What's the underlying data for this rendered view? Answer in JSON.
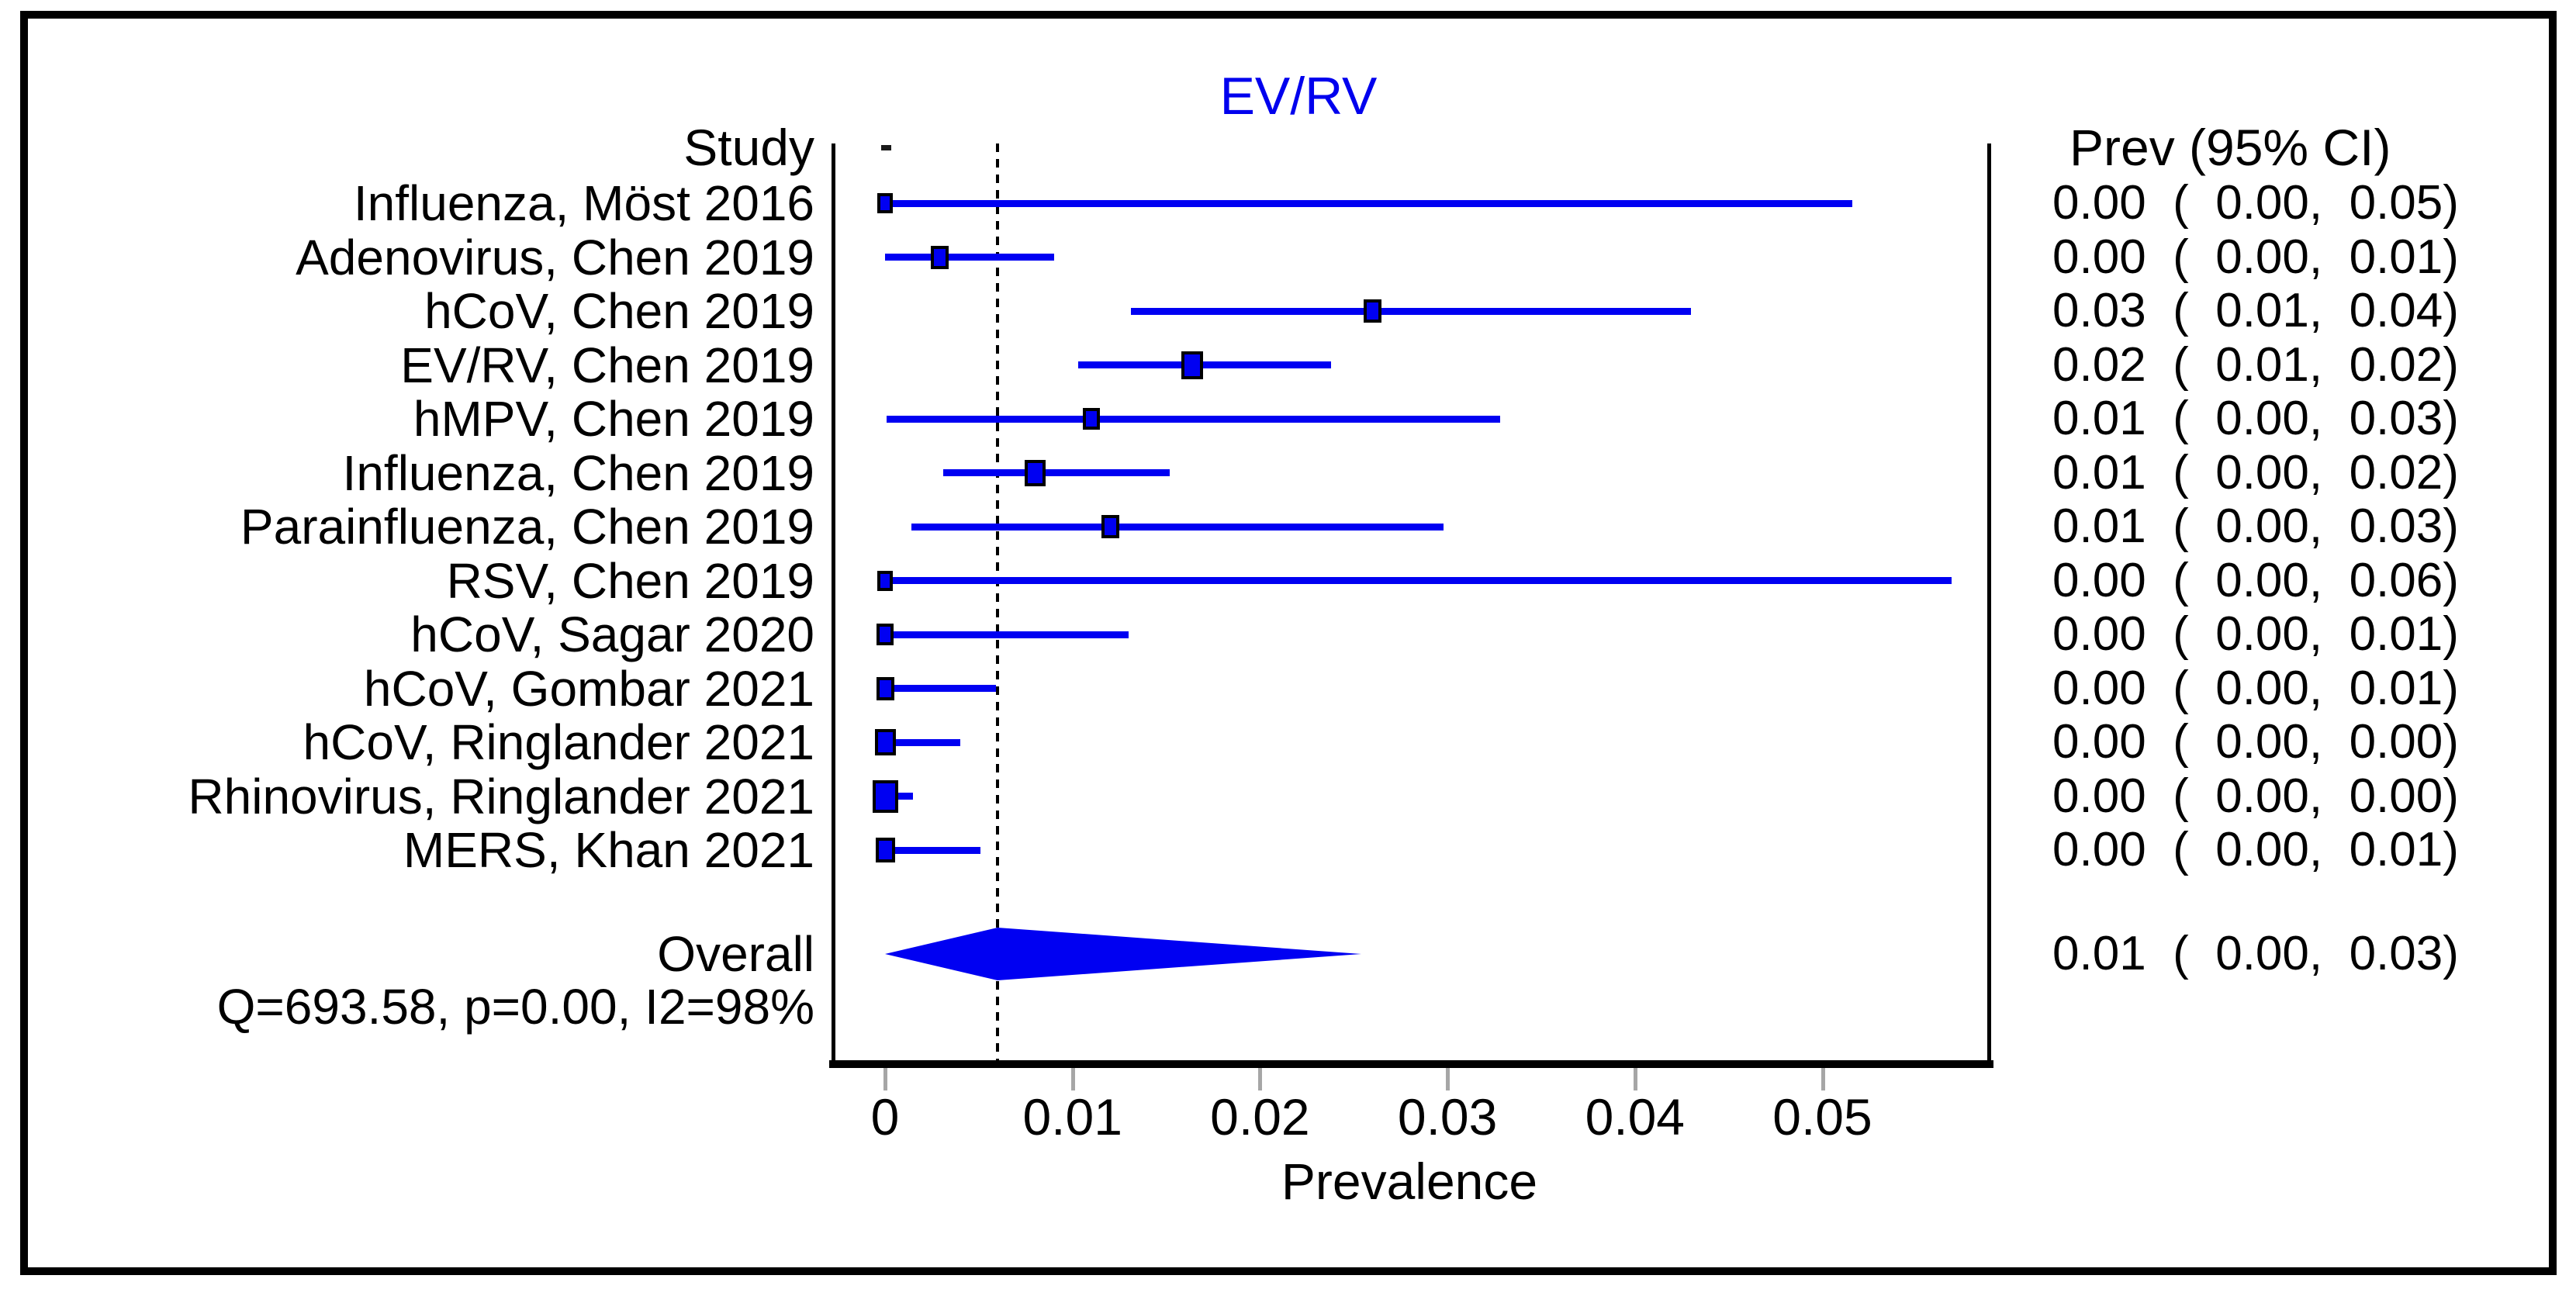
{
  "chart_data": {
    "type": "scatter",
    "subtype": "forest-plot-meta-analysis",
    "title": "EV/RV",
    "title_color": "#0000ee",
    "marker_color": "#0000f2",
    "xlabel": "Prevalence",
    "study_column_header": "Study",
    "prev_column_header": "Prev (95% CI)",
    "grid": false,
    "xlim": [
      -0.002,
      0.059
    ],
    "xticks": [
      {
        "v": 0.0,
        "label": "0"
      },
      {
        "v": 0.01,
        "label": "0.01"
      },
      {
        "v": 0.02,
        "label": "0.02"
      },
      {
        "v": 0.03,
        "label": "0.03"
      },
      {
        "v": 0.04,
        "label": "0.04"
      },
      {
        "v": 0.05,
        "label": "0.05"
      }
    ],
    "refline_x": 0.006,
    "studies": [
      {
        "label": "Influenza, Möst 2016",
        "est": 0.0,
        "lo": 0.0,
        "hi": 0.0516,
        "marker_size_px": 26,
        "ci_label": "0.00  (  0.00,  0.05)"
      },
      {
        "label": "Adenovirus, Chen 2019",
        "est": 0.0029,
        "lo": 0.0,
        "hi": 0.009,
        "marker_size_px": 30,
        "ci_label": "0.00  (  0.00,  0.01)"
      },
      {
        "label": "hCoV, Chen 2019",
        "est": 0.026,
        "lo": 0.0131,
        "hi": 0.043,
        "marker_size_px": 30,
        "ci_label": "0.03  (  0.01,  0.04)"
      },
      {
        "label": "EV/RV, Chen 2019",
        "est": 0.0164,
        "lo": 0.0103,
        "hi": 0.0238,
        "marker_size_px": 36,
        "ci_label": "0.02  (  0.01,  0.02)"
      },
      {
        "label": "hMPV, Chen 2019",
        "est": 0.011,
        "lo": 0.0001,
        "hi": 0.0328,
        "marker_size_px": 28,
        "ci_label": "0.01  (  0.00,  0.03)"
      },
      {
        "label": "Influenza, Chen 2019",
        "est": 0.008,
        "lo": 0.0031,
        "hi": 0.0152,
        "marker_size_px": 34,
        "ci_label": "0.01  (  0.00,  0.02)"
      },
      {
        "label": "Parainfluenza, Chen 2019",
        "est": 0.012,
        "lo": 0.0014,
        "hi": 0.0298,
        "marker_size_px": 30,
        "ci_label": "0.01  (  0.00,  0.03)"
      },
      {
        "label": "RSV, Chen 2019",
        "est": 0.0,
        "lo": 0.0,
        "hi": 0.0569,
        "marker_size_px": 26,
        "ci_label": "0.00  (  0.00,  0.06)"
      },
      {
        "label": "hCoV, Sagar 2020",
        "est": 0.0,
        "lo": 0.0,
        "hi": 0.013,
        "marker_size_px": 28,
        "ci_label": "0.00  (  0.00,  0.01)"
      },
      {
        "label": "hCoV, Gombar 2021",
        "est": 0.0,
        "lo": 0.0,
        "hi": 0.0059,
        "marker_size_px": 30,
        "ci_label": "0.00  (  0.00,  0.01)"
      },
      {
        "label": "hCoV, Ringlander 2021",
        "est": 0.0,
        "lo": 0.0,
        "hi": 0.004,
        "marker_size_px": 34,
        "ci_label": "0.00  (  0.00,  0.00)"
      },
      {
        "label": "Rhinovirus, Ringlander 2021",
        "est": 0.0,
        "lo": 0.0,
        "hi": 0.0015,
        "marker_size_px": 42,
        "ci_label": "0.00  (  0.00,  0.00)"
      },
      {
        "label": "MERS, Khan 2021",
        "est": 0.0,
        "lo": 0.0,
        "hi": 0.0051,
        "marker_size_px": 32,
        "ci_label": "0.00  (  0.00,  0.01)"
      }
    ],
    "overall": {
      "label": "Overall",
      "est": 0.006,
      "lo": 0.0,
      "hi": 0.0254,
      "ci_label": "0.01  (  0.00,  0.03)"
    },
    "heterogeneity": "Q=693.58, p=0.00, I2=98%"
  }
}
